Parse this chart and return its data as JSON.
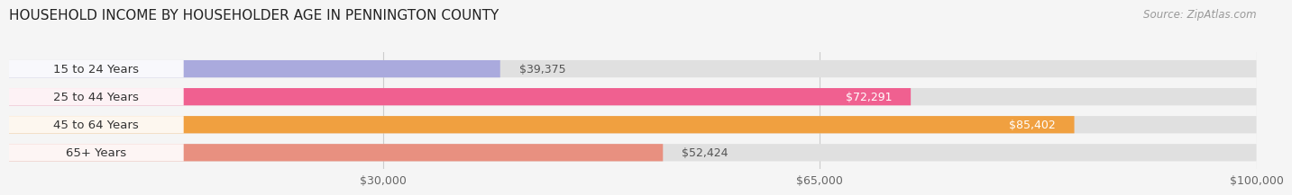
{
  "title": "HOUSEHOLD INCOME BY HOUSEHOLDER AGE IN PENNINGTON COUNTY",
  "source": "Source: ZipAtlas.com",
  "categories": [
    "15 to 24 Years",
    "25 to 44 Years",
    "45 to 64 Years",
    "65+ Years"
  ],
  "values": [
    39375,
    72291,
    85402,
    52424
  ],
  "bar_colors": [
    "#aaaadd",
    "#f06090",
    "#f0a040",
    "#e89080"
  ],
  "bar_bg_color": "#e0e0e0",
  "value_labels": [
    "$39,375",
    "$72,291",
    "$85,402",
    "$52,424"
  ],
  "xticks": [
    30000,
    65000,
    100000
  ],
  "xtick_labels": [
    "$30,000",
    "$65,000",
    "$100,000"
  ],
  "xlim": [
    0,
    100000
  ],
  "title_fontsize": 11,
  "source_fontsize": 8.5,
  "label_fontsize": 9.5,
  "value_fontsize": 9,
  "tick_fontsize": 9,
  "background_color": "#f5f5f5"
}
